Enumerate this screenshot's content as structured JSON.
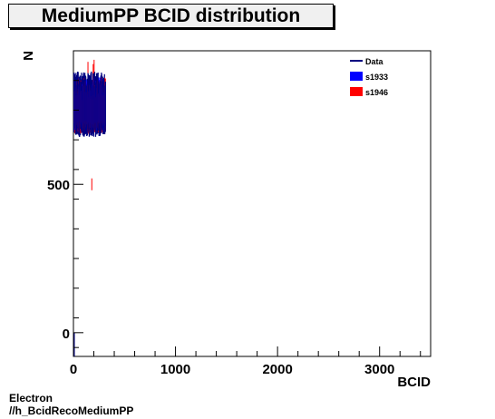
{
  "chart_data": {
    "type": "histogram",
    "title": "MediumPP BCID distribution",
    "xlabel": "BCID",
    "ylabel": "N",
    "xlim": [
      0,
      3500
    ],
    "ylim": [
      -80,
      950
    ],
    "x_ticks": [
      0,
      1000,
      2000,
      3000
    ],
    "y_ticks": [
      0,
      500
    ],
    "x_tick_labels": [
      "0",
      "1000",
      "2000",
      "3000"
    ],
    "y_tick_labels": [
      "0",
      "500"
    ],
    "grid": false,
    "legend_position": "top-right",
    "series": [
      {
        "name": "Data",
        "style": "line",
        "color": "#000080",
        "x_range": [
          0,
          310
        ],
        "y_band": [
          660,
          880
        ]
      },
      {
        "name": "s1933",
        "style": "fill",
        "color": "#0000ff",
        "x_range": [
          0,
          310
        ],
        "y_band": [
          680,
          860
        ]
      },
      {
        "name": "s1946",
        "style": "fill",
        "color": "#ff0000",
        "x_range": [
          0,
          310
        ],
        "y_band": [
          670,
          920
        ]
      }
    ]
  },
  "footer": {
    "line1": "Electron",
    "line2": "//h_BcidRecoMediumPP"
  }
}
